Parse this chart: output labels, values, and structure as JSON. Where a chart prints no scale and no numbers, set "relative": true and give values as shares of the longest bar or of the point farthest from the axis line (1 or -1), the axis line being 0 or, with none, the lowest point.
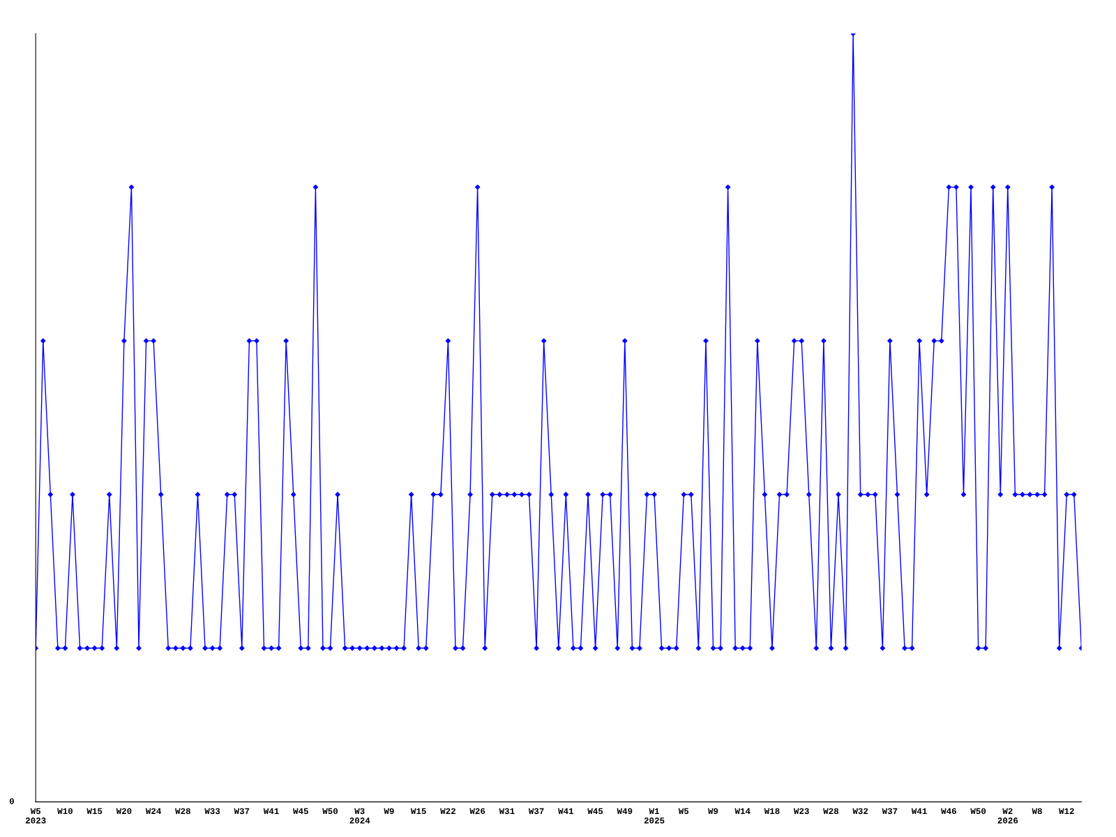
{
  "chart_data": {
    "type": "line",
    "relative": true,
    "annotations": [
      "0"
    ],
    "marker": "diamond",
    "line_style": "solid",
    "grid": false,
    "legend": false,
    "categories": [
      "W5\n2023",
      null,
      null,
      null,
      "W10",
      null,
      null,
      null,
      "W15",
      null,
      null,
      null,
      "W20",
      null,
      null,
      null,
      "W24",
      null,
      null,
      null,
      "W28",
      null,
      null,
      null,
      "W33",
      null,
      null,
      null,
      "W37",
      null,
      null,
      null,
      "W41",
      null,
      null,
      null,
      "W45",
      null,
      null,
      null,
      "W50",
      null,
      null,
      null,
      "W3\n2024",
      null,
      null,
      null,
      "W9",
      null,
      null,
      null,
      "W15",
      null,
      null,
      null,
      "W22",
      null,
      null,
      null,
      "W26",
      null,
      null,
      null,
      "W31",
      null,
      null,
      null,
      "W37",
      null,
      null,
      null,
      "W41",
      null,
      null,
      null,
      "W45",
      null,
      null,
      null,
      "W49",
      null,
      null,
      null,
      "W1\n2025",
      null,
      null,
      null,
      "W5",
      null,
      null,
      null,
      "W9",
      null,
      null,
      null,
      "W14",
      null,
      null,
      null,
      "W18",
      null,
      null,
      null,
      "W23",
      null,
      null,
      null,
      "W28",
      null,
      null,
      null,
      "W32",
      null,
      null,
      null,
      "W37",
      null,
      null,
      null,
      "W41",
      null,
      null,
      null,
      "W46",
      null,
      null,
      null,
      "W50",
      null,
      null,
      null,
      "W2\n2026",
      null,
      null,
      null,
      "W8",
      null,
      null,
      null,
      "W12",
      null,
      null
    ],
    "series": [
      {
        "color": "#0000ff",
        "values": [
          0.2,
          0.6,
          0.4,
          0.2,
          0.2,
          0.4,
          0.2,
          0.2,
          0.2,
          0.2,
          0.4,
          0.2,
          0.6,
          0.8,
          0.2,
          0.6,
          0.6,
          0.4,
          0.2,
          0.2,
          0.2,
          0.2,
          0.4,
          0.2,
          0.2,
          0.2,
          0.4,
          0.4,
          0.2,
          0.6,
          0.6,
          0.2,
          0.2,
          0.2,
          0.6,
          0.4,
          0.2,
          0.2,
          0.8,
          0.2,
          0.2,
          0.4,
          0.2,
          0.2,
          0.2,
          0.2,
          0.2,
          0.2,
          0.2,
          0.2,
          0.2,
          0.4,
          0.2,
          0.2,
          0.4,
          0.4,
          0.6,
          0.2,
          0.2,
          0.4,
          0.8,
          0.2,
          0.4,
          0.4,
          0.4,
          0.4,
          0.4,
          0.4,
          0.2,
          0.6,
          0.4,
          0.2,
          0.4,
          0.2,
          0.2,
          0.4,
          0.2,
          0.4,
          0.4,
          0.2,
          0.6,
          0.2,
          0.2,
          0.4,
          0.4,
          0.2,
          0.2,
          0.2,
          0.4,
          0.4,
          0.2,
          0.6,
          0.2,
          0.2,
          0.8,
          0.2,
          0.2,
          0.2,
          0.6,
          0.4,
          0.2,
          0.4,
          0.4,
          0.6,
          0.6,
          0.4,
          0.2,
          0.6,
          0.2,
          0.4,
          0.2,
          1,
          0.4,
          0.4,
          0.4,
          0.2,
          0.6,
          0.4,
          0.2,
          0.2,
          0.6,
          0.4,
          0.6,
          0.6,
          0.8,
          0.8,
          0.4,
          0.8,
          0.2,
          0.2,
          0.8,
          0.4,
          0.8,
          0.4,
          0.4,
          0.4,
          0.4,
          0.4,
          0.8,
          0.2,
          0.4,
          0.4,
          0.2
        ]
      }
    ]
  }
}
